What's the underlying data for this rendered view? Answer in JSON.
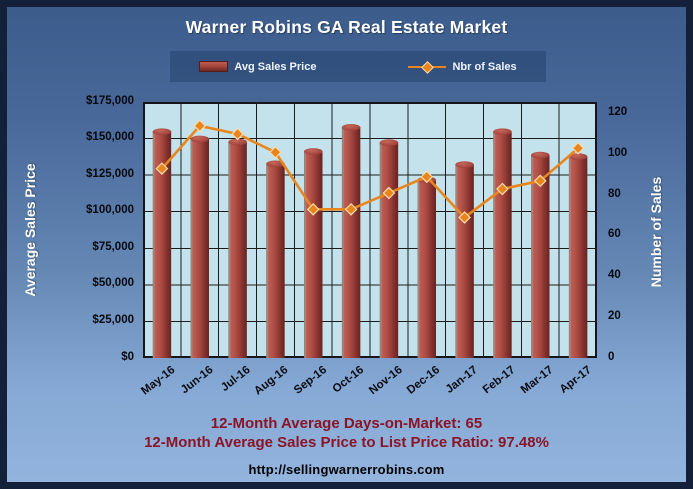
{
  "title": "Warner Robins GA Real Estate Market",
  "legend": {
    "items": [
      {
        "label": "Avg Sales Price",
        "type": "bar",
        "color": "#9e4038"
      },
      {
        "label": "Nbr of Sales",
        "type": "line",
        "color": "#e8851c"
      }
    ]
  },
  "left_axis": {
    "title": "Average Sales Price",
    "ticks": [
      {
        "label": "$175,000",
        "value": 175000
      },
      {
        "label": "$150,000",
        "value": 150000
      },
      {
        "label": "$125,000",
        "value": 125000
      },
      {
        "label": "$100,000",
        "value": 100000
      },
      {
        "label": "$75,000",
        "value": 75000
      },
      {
        "label": "$50,000",
        "value": 50000
      },
      {
        "label": "$25,000",
        "value": 25000
      },
      {
        "label": "$0",
        "value": 0
      }
    ]
  },
  "right_axis": {
    "title": "Number of Sales",
    "ticks": [
      {
        "label": "120",
        "value": 120
      },
      {
        "label": "100",
        "value": 100
      },
      {
        "label": "80",
        "value": 80
      },
      {
        "label": "60",
        "value": 60
      },
      {
        "label": "40",
        "value": 40
      },
      {
        "label": "20",
        "value": 20
      },
      {
        "label": "0",
        "value": 0
      }
    ]
  },
  "chart_data": {
    "type": "combo",
    "title": "Warner Robins GA Real Estate Market",
    "categories": [
      "May-16",
      "Jun-16",
      "Jul-16",
      "Aug-16",
      "Sep-16",
      "Oct-16",
      "Nov-16",
      "Dec-16",
      "Jan-17",
      "Feb-17",
      "Mar-17",
      "Apr-17"
    ],
    "series": [
      {
        "name": "Avg Sales Price",
        "type": "bar",
        "axis": "left",
        "color": "#9e4038",
        "values": [
          157000,
          152000,
          150000,
          135000,
          143500,
          160000,
          149500,
          124000,
          134500,
          157000,
          141000,
          140000
        ]
      },
      {
        "name": "Nbr of Sales",
        "type": "line",
        "axis": "right",
        "color": "#e8851c",
        "values": [
          93,
          114,
          110,
          101,
          73,
          73,
          81,
          89,
          69,
          83,
          87,
          103
        ]
      }
    ],
    "left_axis": {
      "label": "Average Sales Price",
      "min": 0,
      "max": 175000,
      "step": 25000
    },
    "right_axis": {
      "label": "Number of Sales",
      "min": 0,
      "max": 120,
      "step": 20,
      "scale_top": 125.7
    },
    "grid": true,
    "legend_position": "top",
    "plot_bg": "#c4e2eb",
    "grid_color": "#1c1c1c"
  },
  "footer": {
    "days_line": "12-Month Average Days-on-Market: 65",
    "ratio_line": "12-Month Average Sales Price to List Price Ratio: 97.48%",
    "website": "http://sellingwarnerrobins.com"
  },
  "colors": {
    "outer_border": "#14203a",
    "background_top": "#3b5b8b",
    "background_bottom": "#93b5de",
    "bar_highlight": "#c05a50",
    "bar_dark": "#6e2824",
    "line": "#e8851c",
    "marker_outline": "#f7ddb0",
    "footer_text": "#8b1426",
    "axis_text": "#08080f",
    "title_text": "#ffffff"
  }
}
